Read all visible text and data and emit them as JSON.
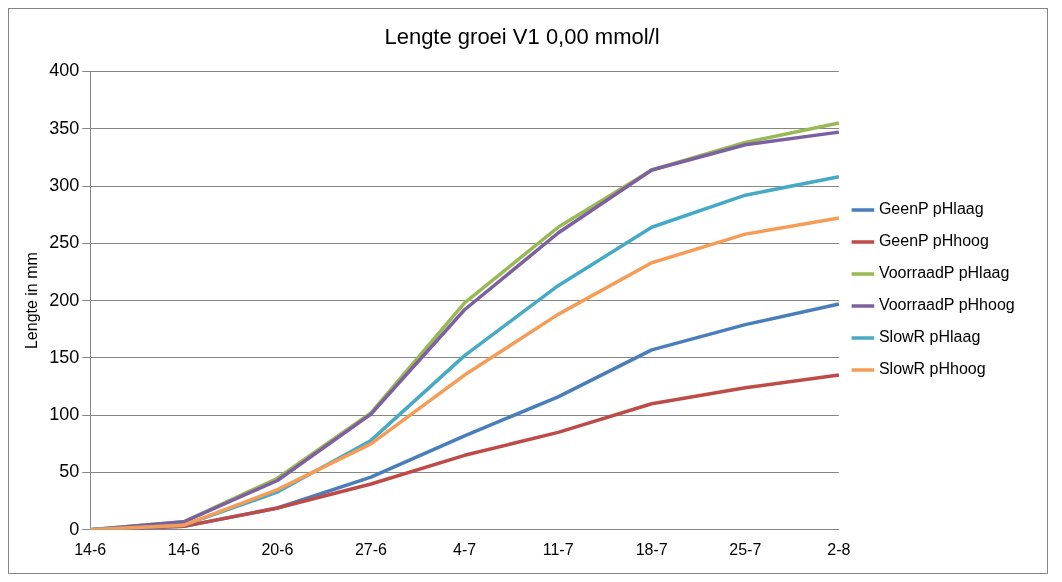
{
  "chart_data": {
    "type": "line",
    "title": "Lengte groei V1 0,00 mmol/l",
    "ylabel": "Lengte in mm",
    "categories": [
      "14-6",
      "14-6",
      "20-6",
      "27-6",
      "4-7",
      "11-7",
      "18-7",
      "25-7",
      "2-8"
    ],
    "ylim": [
      0,
      400
    ],
    "yticks": [
      0,
      50,
      100,
      150,
      200,
      250,
      300,
      350,
      400
    ],
    "grid": "y",
    "legend": "right",
    "marker": "none",
    "series": [
      {
        "name": "GeenP pHlaag",
        "color": "#4a7ebb",
        "values": [
          0,
          3,
          19,
          46,
          82,
          116,
          157,
          179,
          197
        ]
      },
      {
        "name": "GeenP pHhoog",
        "color": "#be4b48",
        "values": [
          0,
          3,
          19,
          40,
          65,
          85,
          110,
          124,
          135
        ]
      },
      {
        "name": "VoorraadP pHlaag",
        "color": "#98b954",
        "values": [
          0,
          7,
          45,
          102,
          198,
          264,
          314,
          338,
          355
        ]
      },
      {
        "name": "VoorraadP pHhoog",
        "color": "#7d60a0",
        "values": [
          0,
          7,
          43,
          101,
          192,
          259,
          314,
          336,
          347
        ]
      },
      {
        "name": "SlowR pHlaag",
        "color": "#46aac5",
        "values": [
          0,
          4,
          33,
          78,
          152,
          213,
          264,
          292,
          308
        ]
      },
      {
        "name": "SlowR pHhoog",
        "color": "#f59d56",
        "values": [
          0,
          4,
          35,
          75,
          135,
          188,
          233,
          258,
          272
        ]
      }
    ]
  }
}
